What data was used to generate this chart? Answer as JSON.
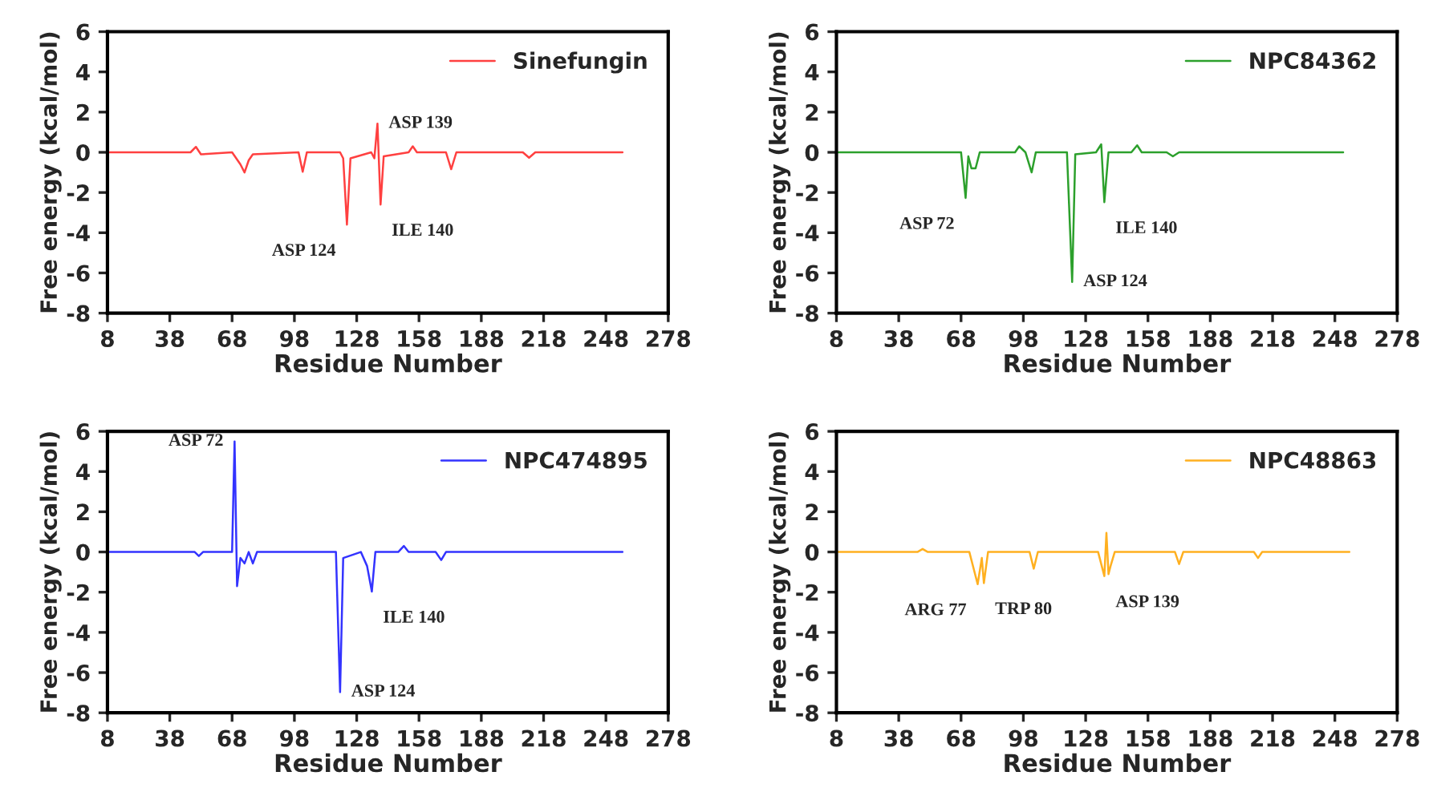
{
  "chart_data": [
    {
      "type": "line",
      "xlabel": "Residue Number",
      "ylabel": "Free energy (kcal/mol)",
      "xlim": [
        8,
        278
      ],
      "xticks": [
        8,
        38,
        68,
        98,
        128,
        158,
        188,
        218,
        248,
        278
      ],
      "ylim": [
        -8,
        6
      ],
      "yticks": [
        -8,
        -6,
        -4,
        -2,
        0,
        2,
        4,
        6
      ],
      "legend": "top right",
      "grid": false,
      "series": [
        {
          "name": "Sinefungin",
          "color": "#ff4040",
          "x": [
            8,
            48,
            50.6,
            53,
            68,
            72,
            74,
            76,
            78,
            100,
            102,
            104,
            120,
            121.5,
            123.3,
            125,
            135,
            136.5,
            138,
            139.5,
            141,
            153,
            155,
            157,
            171,
            173.5,
            176,
            208,
            211,
            214,
            256
          ],
          "values": [
            0,
            0,
            0.27,
            -0.1,
            0,
            -0.6,
            -1.0,
            -0.4,
            -0.1,
            0,
            -0.97,
            0,
            0,
            -0.3,
            -3.6,
            -0.3,
            0,
            -0.3,
            1.43,
            -2.6,
            -0.2,
            0,
            0.3,
            0,
            0,
            -0.84,
            0,
            0,
            -0.27,
            0,
            0
          ]
        }
      ],
      "annotations": [
        {
          "text": "ASP 139",
          "x": 138,
          "y": 1.43
        },
        {
          "text": "ASP 124",
          "x": 123.3,
          "y": -3.6
        },
        {
          "text": "ILE 140",
          "x": 139.5,
          "y": -2.6
        }
      ]
    },
    {
      "type": "line",
      "xlabel": "Residue Number",
      "ylabel": "Free energy (kcal/mol)",
      "xlim": [
        8,
        278
      ],
      "xticks": [
        8,
        38,
        68,
        98,
        128,
        158,
        188,
        218,
        248,
        278
      ],
      "ylim": [
        -8,
        6
      ],
      "yticks": [
        -8,
        -6,
        -4,
        -2,
        0,
        2,
        4,
        6
      ],
      "legend": "top right",
      "grid": false,
      "series": [
        {
          "name": "NPC84362",
          "color": "#2ca02c",
          "x": [
            8,
            68,
            70.2,
            71.5,
            73,
            75,
            77,
            94,
            96,
            99,
            102,
            104,
            119,
            121.5,
            123,
            133,
            135.5,
            137,
            139,
            150,
            152.8,
            155,
            167,
            170,
            173,
            252
          ],
          "values": [
            0,
            0,
            -2.27,
            -0.2,
            -0.8,
            -0.8,
            0,
            0,
            0.3,
            0,
            -1.0,
            0,
            0,
            -6.45,
            -0.1,
            0,
            0.4,
            -2.48,
            0,
            0,
            0.35,
            0,
            0,
            -0.2,
            0,
            0
          ]
        }
      ],
      "annotations": [
        {
          "text": "ASP 72",
          "x": 70.2,
          "y": -2.27
        },
        {
          "text": "ASP 124",
          "x": 121.5,
          "y": -6.45
        },
        {
          "text": "ILE 140",
          "x": 137,
          "y": -2.48
        }
      ]
    },
    {
      "type": "line",
      "xlabel": "Residue Number",
      "ylabel": "Free energy (kcal/mol)",
      "xlim": [
        8,
        278
      ],
      "xticks": [
        8,
        38,
        68,
        98,
        128,
        158,
        188,
        218,
        248,
        278
      ],
      "ylim": [
        -8,
        6
      ],
      "yticks": [
        -8,
        -6,
        -4,
        -2,
        0,
        2,
        4,
        6
      ],
      "legend": "top right",
      "grid": false,
      "series": [
        {
          "name": "NPC474895",
          "color": "#3333ff",
          "x": [
            8,
            50,
            52,
            54,
            68,
            69.2,
            70.4,
            72,
            74,
            76,
            78,
            80,
            118,
            120,
            121.5,
            130,
            133,
            135.3,
            137,
            148,
            150.7,
            153,
            166,
            168.7,
            171,
            256
          ],
          "values": [
            0,
            0,
            -0.2,
            0,
            0,
            5.5,
            -1.7,
            -0.3,
            -0.57,
            0,
            -0.57,
            0,
            0,
            -6.97,
            -0.3,
            0,
            -0.7,
            -1.97,
            0,
            0,
            0.3,
            0,
            0,
            -0.4,
            0,
            0
          ]
        }
      ],
      "annotations": [
        {
          "text": "ASP 72",
          "x": 69.2,
          "y": 5.5
        },
        {
          "text": "ILE 140",
          "x": 135.3,
          "y": -1.97
        },
        {
          "text": "ASP 124",
          "x": 120,
          "y": -6.97
        }
      ]
    },
    {
      "type": "line",
      "xlabel": "Residue Number",
      "ylabel": "Free energy (kcal/mol)",
      "xlim": [
        8,
        278
      ],
      "xticks": [
        8,
        38,
        68,
        98,
        128,
        158,
        188,
        218,
        248,
        278
      ],
      "ylim": [
        -8,
        6
      ],
      "yticks": [
        -8,
        -6,
        -4,
        -2,
        0,
        2,
        4,
        6
      ],
      "legend": "top right",
      "grid": false,
      "series": [
        {
          "name": "NPC48863",
          "color": "#ffb020",
          "x": [
            8,
            47,
            49.5,
            52,
            72,
            76,
            78,
            79,
            81,
            101,
            103,
            105,
            134,
            137,
            138,
            139,
            140,
            142,
            171,
            173,
            175,
            209,
            211,
            213,
            255
          ],
          "values": [
            0,
            0,
            0.15,
            0,
            0,
            -1.6,
            -0.3,
            -1.55,
            0,
            0,
            -0.83,
            0,
            0,
            -1.2,
            0.95,
            -1.1,
            -0.7,
            0,
            0,
            -0.6,
            0,
            0,
            -0.3,
            0,
            0
          ]
        }
      ],
      "annotations": [
        {
          "text": "ARG 77",
          "x": 76,
          "y": -1.6
        },
        {
          "text": "TRP 80",
          "x": 79,
          "y": -1.55
        },
        {
          "text": "ASP 139",
          "x": 137,
          "y": -1.2
        }
      ]
    }
  ]
}
